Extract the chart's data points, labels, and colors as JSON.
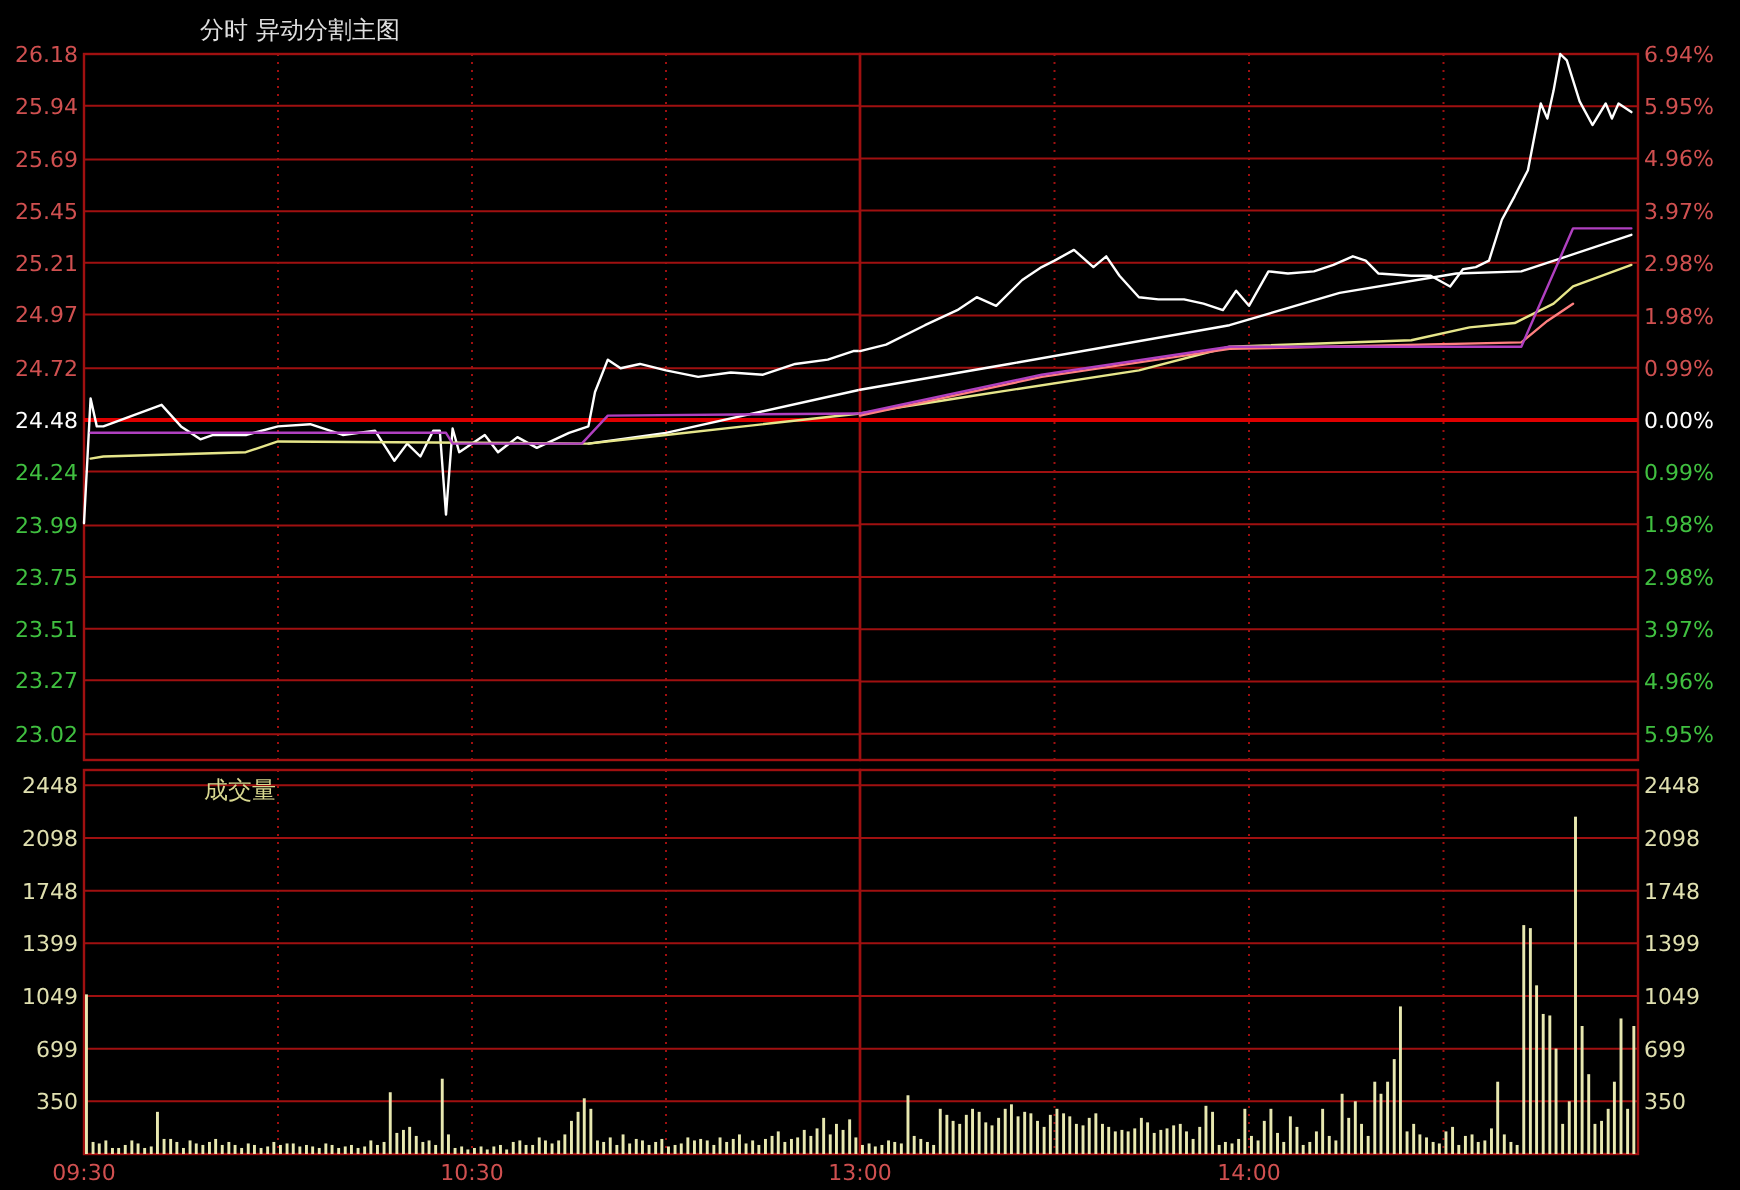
{
  "chart_data": [
    {
      "type": "line",
      "title": "分时 异动分割主图",
      "xlim": [
        9.5,
        11.5
      ],
      "xticks": [
        9.5,
        10,
        10.5,
        11
      ],
      "ylim": [
        22.9,
        26.18
      ],
      "yticks": [
        26.18,
        25.94,
        25.69,
        25.45,
        25.21,
        24.97,
        24.72,
        24.48,
        24.24,
        23.99,
        23.75,
        23.51,
        23.27,
        23.02
      ],
      "grid": true,
      "tick_labels": "y",
      "line_style": "solid",
      "ref_lines": [
        {
          "axis": "y",
          "value": 24.48,
          "color": "#e00000"
        }
      ],
      "series": [
        {
          "color": "#ffffff",
          "x": [
            9.5,
            9.517,
            9.533,
            9.55,
            9.7,
            9.75,
            9.8,
            9.833,
            9.917,
            10,
            10.083,
            10.167,
            10.25,
            10.3,
            10.333,
            10.367,
            10.4,
            10.417,
            10.433,
            10.45,
            10.467,
            10.533,
            10.567,
            10.617,
            10.667,
            10.75,
            10.8,
            10.817,
            10.85,
            10.883,
            10.933,
            11,
            11.083,
            11.167,
            11.25,
            11.333,
            11.417,
            11.483,
            11.5
          ],
          "values": [
            24.0,
            24.58,
            24.45,
            24.45,
            24.55,
            24.45,
            24.39,
            24.41,
            24.41,
            24.45,
            24.46,
            24.41,
            24.43,
            24.29,
            24.37,
            24.31,
            24.43,
            24.43,
            24.04,
            24.44,
            24.33,
            24.41,
            24.33,
            24.4,
            24.35,
            24.42,
            24.45,
            24.61,
            24.76,
            24.72,
            24.74,
            24.71,
            24.68,
            24.7,
            24.69,
            24.74,
            24.76,
            24.8,
            24.8
          ]
        },
        {
          "color": "#ffffff",
          "x": [
            10.8,
            11,
            11.5
          ],
          "values": [
            24.37,
            24.42,
            24.62
          ]
        },
        {
          "color": "#e6e68a",
          "x": [
            9.517,
            9.55,
            9.917,
            10,
            10.8,
            11,
            11.5
          ],
          "values": [
            24.3,
            24.31,
            24.33,
            24.38,
            24.37,
            24.41,
            24.51
          ]
        },
        {
          "color": "#b040c0",
          "x": [
            9.517,
            10.433,
            10.45,
            10.783,
            10.85,
            11.5
          ],
          "values": [
            24.42,
            24.42,
            24.37,
            24.37,
            24.5,
            24.51
          ]
        }
      ]
    },
    {
      "type": "line",
      "xlim": [
        13,
        15
      ],
      "xticks": [
        13,
        13.5,
        14,
        14.5
      ],
      "ylim": [
        22.9,
        26.18
      ],
      "y2lim": [
        -6.45,
        6.94
      ],
      "y2ticks": [
        {
          "value": 6.94,
          "label": "6.94%"
        },
        {
          "value": 5.95,
          "label": "5.95%"
        },
        {
          "value": 4.96,
          "label": "4.96%"
        },
        {
          "value": 3.97,
          "label": "3.97%"
        },
        {
          "value": 2.98,
          "label": "2.98%"
        },
        {
          "value": 1.98,
          "label": "1.98%"
        },
        {
          "value": 0.99,
          "label": "0.99%"
        },
        {
          "value": 0,
          "label": "0.00%"
        },
        {
          "value": -0.99,
          "label": "0.99%"
        },
        {
          "value": -1.98,
          "label": "1.98%"
        },
        {
          "value": -2.98,
          "label": "2.98%"
        },
        {
          "value": -3.97,
          "label": "3.97%"
        },
        {
          "value": -4.96,
          "label": "4.96%"
        },
        {
          "value": -5.95,
          "label": "5.95%"
        }
      ],
      "grid": true,
      "tick_labels": false,
      "line_style": "solid",
      "ref_lines": [
        {
          "axis": "y2",
          "value": 0,
          "color": "#e00000"
        }
      ],
      "series": [
        {
          "color": "#ffffff",
          "x": [
            13,
            13.067,
            13.167,
            13.25,
            13.3,
            13.35,
            13.417,
            13.467,
            13.5,
            13.55,
            13.6,
            13.633,
            13.667,
            13.717,
            13.767,
            13.833,
            13.883,
            13.933,
            13.967,
            14,
            14.05,
            14.1,
            14.167,
            14.217,
            14.267,
            14.3,
            14.333,
            14.417,
            14.467,
            14.517,
            14.55,
            14.583,
            14.617,
            14.65,
            14.683,
            14.717,
            14.75,
            14.767,
            14.783,
            14.8,
            14.817,
            14.85,
            14.883,
            14.917,
            14.933,
            14.95,
            14.983
          ],
          "values": [
            24.8,
            24.83,
            24.92,
            24.99,
            25.05,
            25.01,
            25.13,
            25.19,
            25.22,
            25.27,
            25.19,
            25.24,
            25.15,
            25.05,
            25.04,
            25.04,
            25.02,
            24.99,
            25.08,
            25.01,
            25.17,
            25.16,
            25.17,
            25.2,
            25.24,
            25.22,
            25.16,
            25.15,
            25.15,
            25.1,
            25.18,
            25.19,
            25.22,
            25.41,
            25.52,
            25.64,
            25.95,
            25.88,
            26.01,
            26.18,
            26.15,
            25.96,
            25.85,
            25.95,
            25.88,
            25.95,
            25.91
          ]
        },
        {
          "color": "#ffffff",
          "x": [
            13,
            13.383,
            13.95,
            14.233,
            14.533,
            14.7,
            14.817,
            14.983
          ],
          "values": [
            24.62,
            24.74,
            24.92,
            25.07,
            25.16,
            25.17,
            25.24,
            25.34
          ]
        },
        {
          "color": "#e6e68a",
          "x": [
            13,
            13.283,
            13.717,
            13.95,
            14.417,
            14.567,
            14.683,
            14.783,
            14.833,
            14.983
          ],
          "values": [
            24.51,
            24.59,
            24.71,
            24.82,
            24.85,
            24.91,
            24.93,
            25.02,
            25.1,
            25.2
          ]
        },
        {
          "color": "#ff8080",
          "x": [
            13,
            13.467,
            13.95,
            14.7,
            14.767,
            14.833
          ],
          "values": [
            24.5,
            24.68,
            24.81,
            24.84,
            24.94,
            25.02
          ]
        },
        {
          "color": "#b040c0",
          "x": [
            13,
            13.467,
            13.95,
            14.7,
            14.833,
            14.983
          ],
          "values": [
            24.51,
            24.69,
            24.82,
            24.82,
            25.37,
            25.37
          ]
        }
      ]
    },
    {
      "type": "bar",
      "title": "成交量",
      "xlim": [
        9.5,
        11.5
      ],
      "xticks": [
        {
          "value": 9.5,
          "label": "09:30"
        },
        {
          "value": 10,
          "label": null
        },
        {
          "value": 10.5,
          "label": "10:30"
        },
        {
          "value": 11,
          "label": null
        }
      ],
      "ylim": [
        0,
        2550
      ],
      "yticks": [
        350,
        699,
        1049,
        1399,
        1748,
        2098,
        2448
      ],
      "grid": true,
      "series": [
        {
          "color": "#e8e8b0",
          "x": [
            9.5,
            9.517,
            9.533,
            9.55,
            9.567,
            9.583,
            9.6,
            9.617,
            9.633,
            9.65,
            9.667,
            9.683,
            9.7,
            9.717,
            9.733,
            9.75,
            9.767,
            9.783,
            9.8,
            9.817,
            9.833,
            9.85,
            9.867,
            9.883,
            9.9,
            9.917,
            9.933,
            9.95,
            9.967,
            9.983,
            10,
            10.017,
            10.033,
            10.05,
            10.067,
            10.083,
            10.1,
            10.117,
            10.133,
            10.15,
            10.167,
            10.183,
            10.2,
            10.217,
            10.233,
            10.25,
            10.267,
            10.283,
            10.3,
            10.317,
            10.333,
            10.35,
            10.367,
            10.383,
            10.4,
            10.417,
            10.433,
            10.45,
            10.467,
            10.483,
            10.5,
            10.517,
            10.533,
            10.55,
            10.567,
            10.583,
            10.6,
            10.617,
            10.633,
            10.65,
            10.667,
            10.683,
            10.7,
            10.717,
            10.733,
            10.75,
            10.767,
            10.783,
            10.8,
            10.817,
            10.833,
            10.85,
            10.867,
            10.883,
            10.9,
            10.917,
            10.933,
            10.95,
            10.967,
            10.983,
            11,
            11.017,
            11.033,
            11.05,
            11.067,
            11.083,
            11.1,
            11.117,
            11.133,
            11.15,
            11.167,
            11.183,
            11.2,
            11.217,
            11.233,
            11.25,
            11.267,
            11.283,
            11.3,
            11.317,
            11.333,
            11.35,
            11.367,
            11.383,
            11.4,
            11.417,
            11.433,
            11.45,
            11.467,
            11.483
          ],
          "values": [
            1060,
            80,
            70,
            90,
            40,
            40,
            60,
            90,
            70,
            40,
            50,
            280,
            100,
            100,
            80,
            40,
            90,
            70,
            60,
            80,
            100,
            60,
            80,
            60,
            40,
            70,
            60,
            40,
            50,
            80,
            60,
            70,
            70,
            50,
            60,
            50,
            40,
            70,
            60,
            40,
            50,
            60,
            40,
            50,
            90,
            60,
            80,
            410,
            140,
            160,
            180,
            120,
            80,
            90,
            60,
            500,
            130,
            40,
            50,
            30,
            40,
            50,
            30,
            50,
            60,
            30,
            80,
            90,
            60,
            60,
            110,
            90,
            70,
            90,
            130,
            220,
            280,
            370,
            300,
            90,
            80,
            110,
            60,
            130,
            70,
            100,
            90,
            60,
            80,
            100,
            50,
            60,
            70,
            110,
            90,
            100,
            90,
            60,
            110,
            80,
            100,
            130,
            70,
            90,
            60,
            100,
            120,
            150,
            80,
            100,
            110,
            160,
            120,
            170,
            240,
            130,
            200,
            160,
            230,
            110
          ]
        }
      ]
    },
    {
      "type": "bar",
      "xlim": [
        13,
        15
      ],
      "xticks": [
        {
          "value": 13,
          "label": "13:00"
        },
        {
          "value": 13.5,
          "label": null
        },
        {
          "value": 14,
          "label": "14:00"
        },
        {
          "value": 14.5,
          "label": null
        }
      ],
      "y2lim": [
        0,
        2550
      ],
      "y2ticks": [
        350,
        699,
        1049,
        1399,
        1748,
        2098,
        2448
      ],
      "grid": true,
      "series": [
        {
          "color": "#e8e8b0",
          "axis": "y2",
          "x": [
            13,
            13.017,
            13.033,
            13.05,
            13.067,
            13.083,
            13.1,
            13.117,
            13.133,
            13.15,
            13.167,
            13.183,
            13.2,
            13.217,
            13.233,
            13.25,
            13.267,
            13.283,
            13.3,
            13.317,
            13.333,
            13.35,
            13.367,
            13.383,
            13.4,
            13.417,
            13.433,
            13.45,
            13.467,
            13.483,
            13.5,
            13.517,
            13.533,
            13.55,
            13.567,
            13.583,
            13.6,
            13.617,
            13.633,
            13.65,
            13.667,
            13.683,
            13.7,
            13.717,
            13.733,
            13.75,
            13.767,
            13.783,
            13.8,
            13.817,
            13.833,
            13.85,
            13.867,
            13.883,
            13.9,
            13.917,
            13.933,
            13.95,
            13.967,
            13.983,
            14,
            14.017,
            14.033,
            14.05,
            14.067,
            14.083,
            14.1,
            14.117,
            14.133,
            14.15,
            14.167,
            14.183,
            14.2,
            14.217,
            14.233,
            14.25,
            14.267,
            14.283,
            14.3,
            14.317,
            14.333,
            14.35,
            14.367,
            14.383,
            14.4,
            14.417,
            14.433,
            14.45,
            14.467,
            14.483,
            14.5,
            14.517,
            14.533,
            14.55,
            14.567,
            14.583,
            14.6,
            14.617,
            14.633,
            14.65,
            14.667,
            14.683,
            14.7,
            14.717,
            14.733,
            14.75,
            14.767,
            14.783,
            14.8,
            14.817,
            14.833,
            14.85,
            14.867,
            14.883,
            14.9,
            14.917,
            14.933,
            14.95,
            14.967,
            14.983
          ],
          "values": [
            60,
            70,
            50,
            60,
            90,
            80,
            70,
            390,
            120,
            100,
            80,
            60,
            300,
            260,
            220,
            200,
            260,
            300,
            280,
            210,
            190,
            240,
            300,
            330,
            250,
            280,
            270,
            220,
            180,
            260,
            300,
            270,
            250,
            200,
            190,
            240,
            270,
            200,
            180,
            150,
            160,
            150,
            170,
            240,
            210,
            140,
            160,
            170,
            190,
            200,
            150,
            100,
            180,
            320,
            280,
            60,
            80,
            70,
            100,
            300,
            120,
            90,
            220,
            300,
            140,
            80,
            250,
            180,
            60,
            80,
            150,
            300,
            120,
            90,
            400,
            240,
            350,
            200,
            120,
            480,
            400,
            480,
            630,
            980,
            150,
            200,
            130,
            110,
            80,
            70,
            150,
            180,
            60,
            120,
            130,
            80,
            90,
            170,
            480,
            130,
            80,
            60,
            1520,
            1500,
            1120,
            930,
            920,
            700,
            200,
            350,
            2240,
            850,
            530,
            200,
            220,
            300,
            480,
            900,
            300,
            850
          ]
        }
      ]
    }
  ]
}
